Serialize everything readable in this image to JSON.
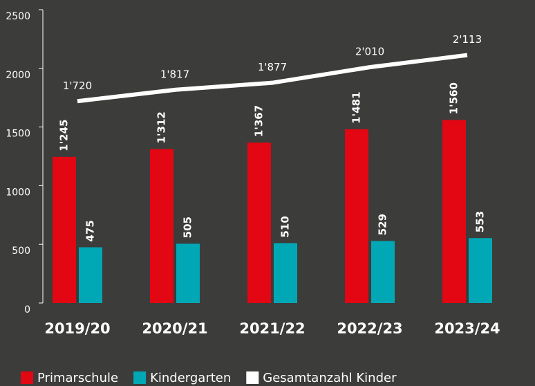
{
  "chart_data": {
    "type": "bar",
    "categories": [
      "2019/20",
      "2020/21",
      "2021/22",
      "2022/23",
      "2023/24"
    ],
    "series": [
      {
        "name": "Primarschule",
        "color": "#e30613",
        "values": [
          1245,
          1312,
          1367,
          1481,
          1560
        ],
        "value_labels": [
          "1'245",
          "1'312",
          "1'367",
          "1'481",
          "1'560"
        ]
      },
      {
        "name": "Kindergarten",
        "color": "#00a8b5",
        "values": [
          475,
          505,
          510,
          529,
          553
        ],
        "value_labels": [
          "475",
          "505",
          "510",
          "529",
          "553"
        ]
      },
      {
        "name": "Gesamtanzahl Kinder",
        "color": "#ffffff",
        "type": "line",
        "values": [
          1720,
          1817,
          1877,
          2010,
          2113
        ],
        "value_labels": [
          "1'720",
          "1'817",
          "1'877",
          "2'010",
          "2'113"
        ]
      }
    ],
    "ylim": [
      0,
      2500
    ],
    "yticks": [
      0,
      500,
      1000,
      1500,
      2000,
      2500
    ]
  }
}
